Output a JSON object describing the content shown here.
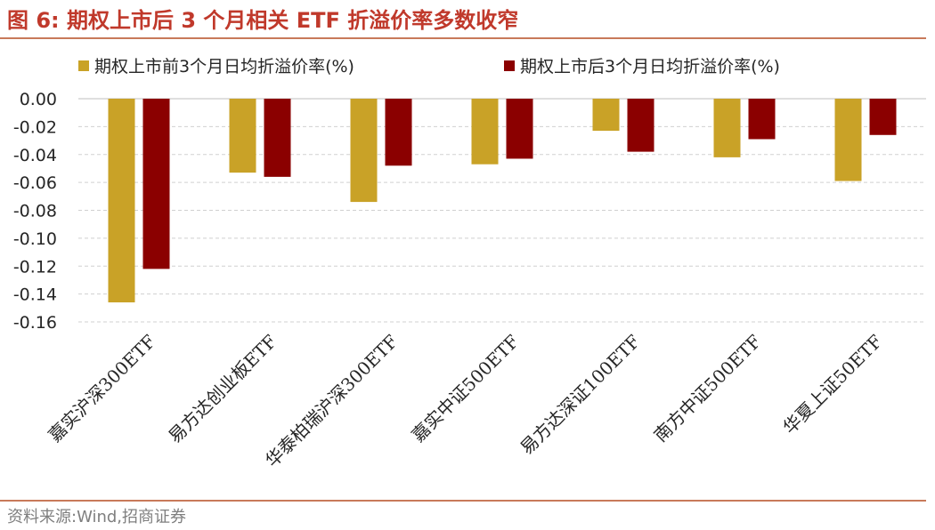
{
  "figure": {
    "title": "图 6:  期权上市后 3 个月相关 ETF 折溢价率多数收窄",
    "source": "资料来源:Wind,招商证券"
  },
  "colors": {
    "accent": "#c0392b",
    "rule": "#c87a5a",
    "series_before": "#c9a227",
    "series_after": "#8b0000",
    "gridline": "#d0d0d0"
  },
  "chart_data": {
    "type": "bar",
    "title": "",
    "xlabel": "",
    "ylabel": "",
    "categories": [
      "嘉实沪深300ETF",
      "易方达创业板ETF",
      "华泰柏瑞沪深300ETF",
      "嘉实中证500ETF",
      "易方达深证100ETF",
      "南方中证500ETF",
      "华夏上证50ETF"
    ],
    "series": [
      {
        "name": "期权上市前3个月日均折溢价率(%)",
        "values": [
          -0.146,
          -0.053,
          -0.074,
          -0.047,
          -0.023,
          -0.042,
          -0.059
        ]
      },
      {
        "name": "期权上市后3个月日均折溢价率(%)",
        "values": [
          -0.122,
          -0.056,
          -0.048,
          -0.043,
          -0.038,
          -0.029,
          -0.026
        ]
      }
    ],
    "ylim": [
      -0.16,
      0.0
    ],
    "yticks": [
      "0.00",
      "-0.02",
      "-0.04",
      "-0.06",
      "-0.08",
      "-0.10",
      "-0.12",
      "-0.14",
      "-0.16"
    ],
    "grid": true,
    "legend": "top"
  }
}
